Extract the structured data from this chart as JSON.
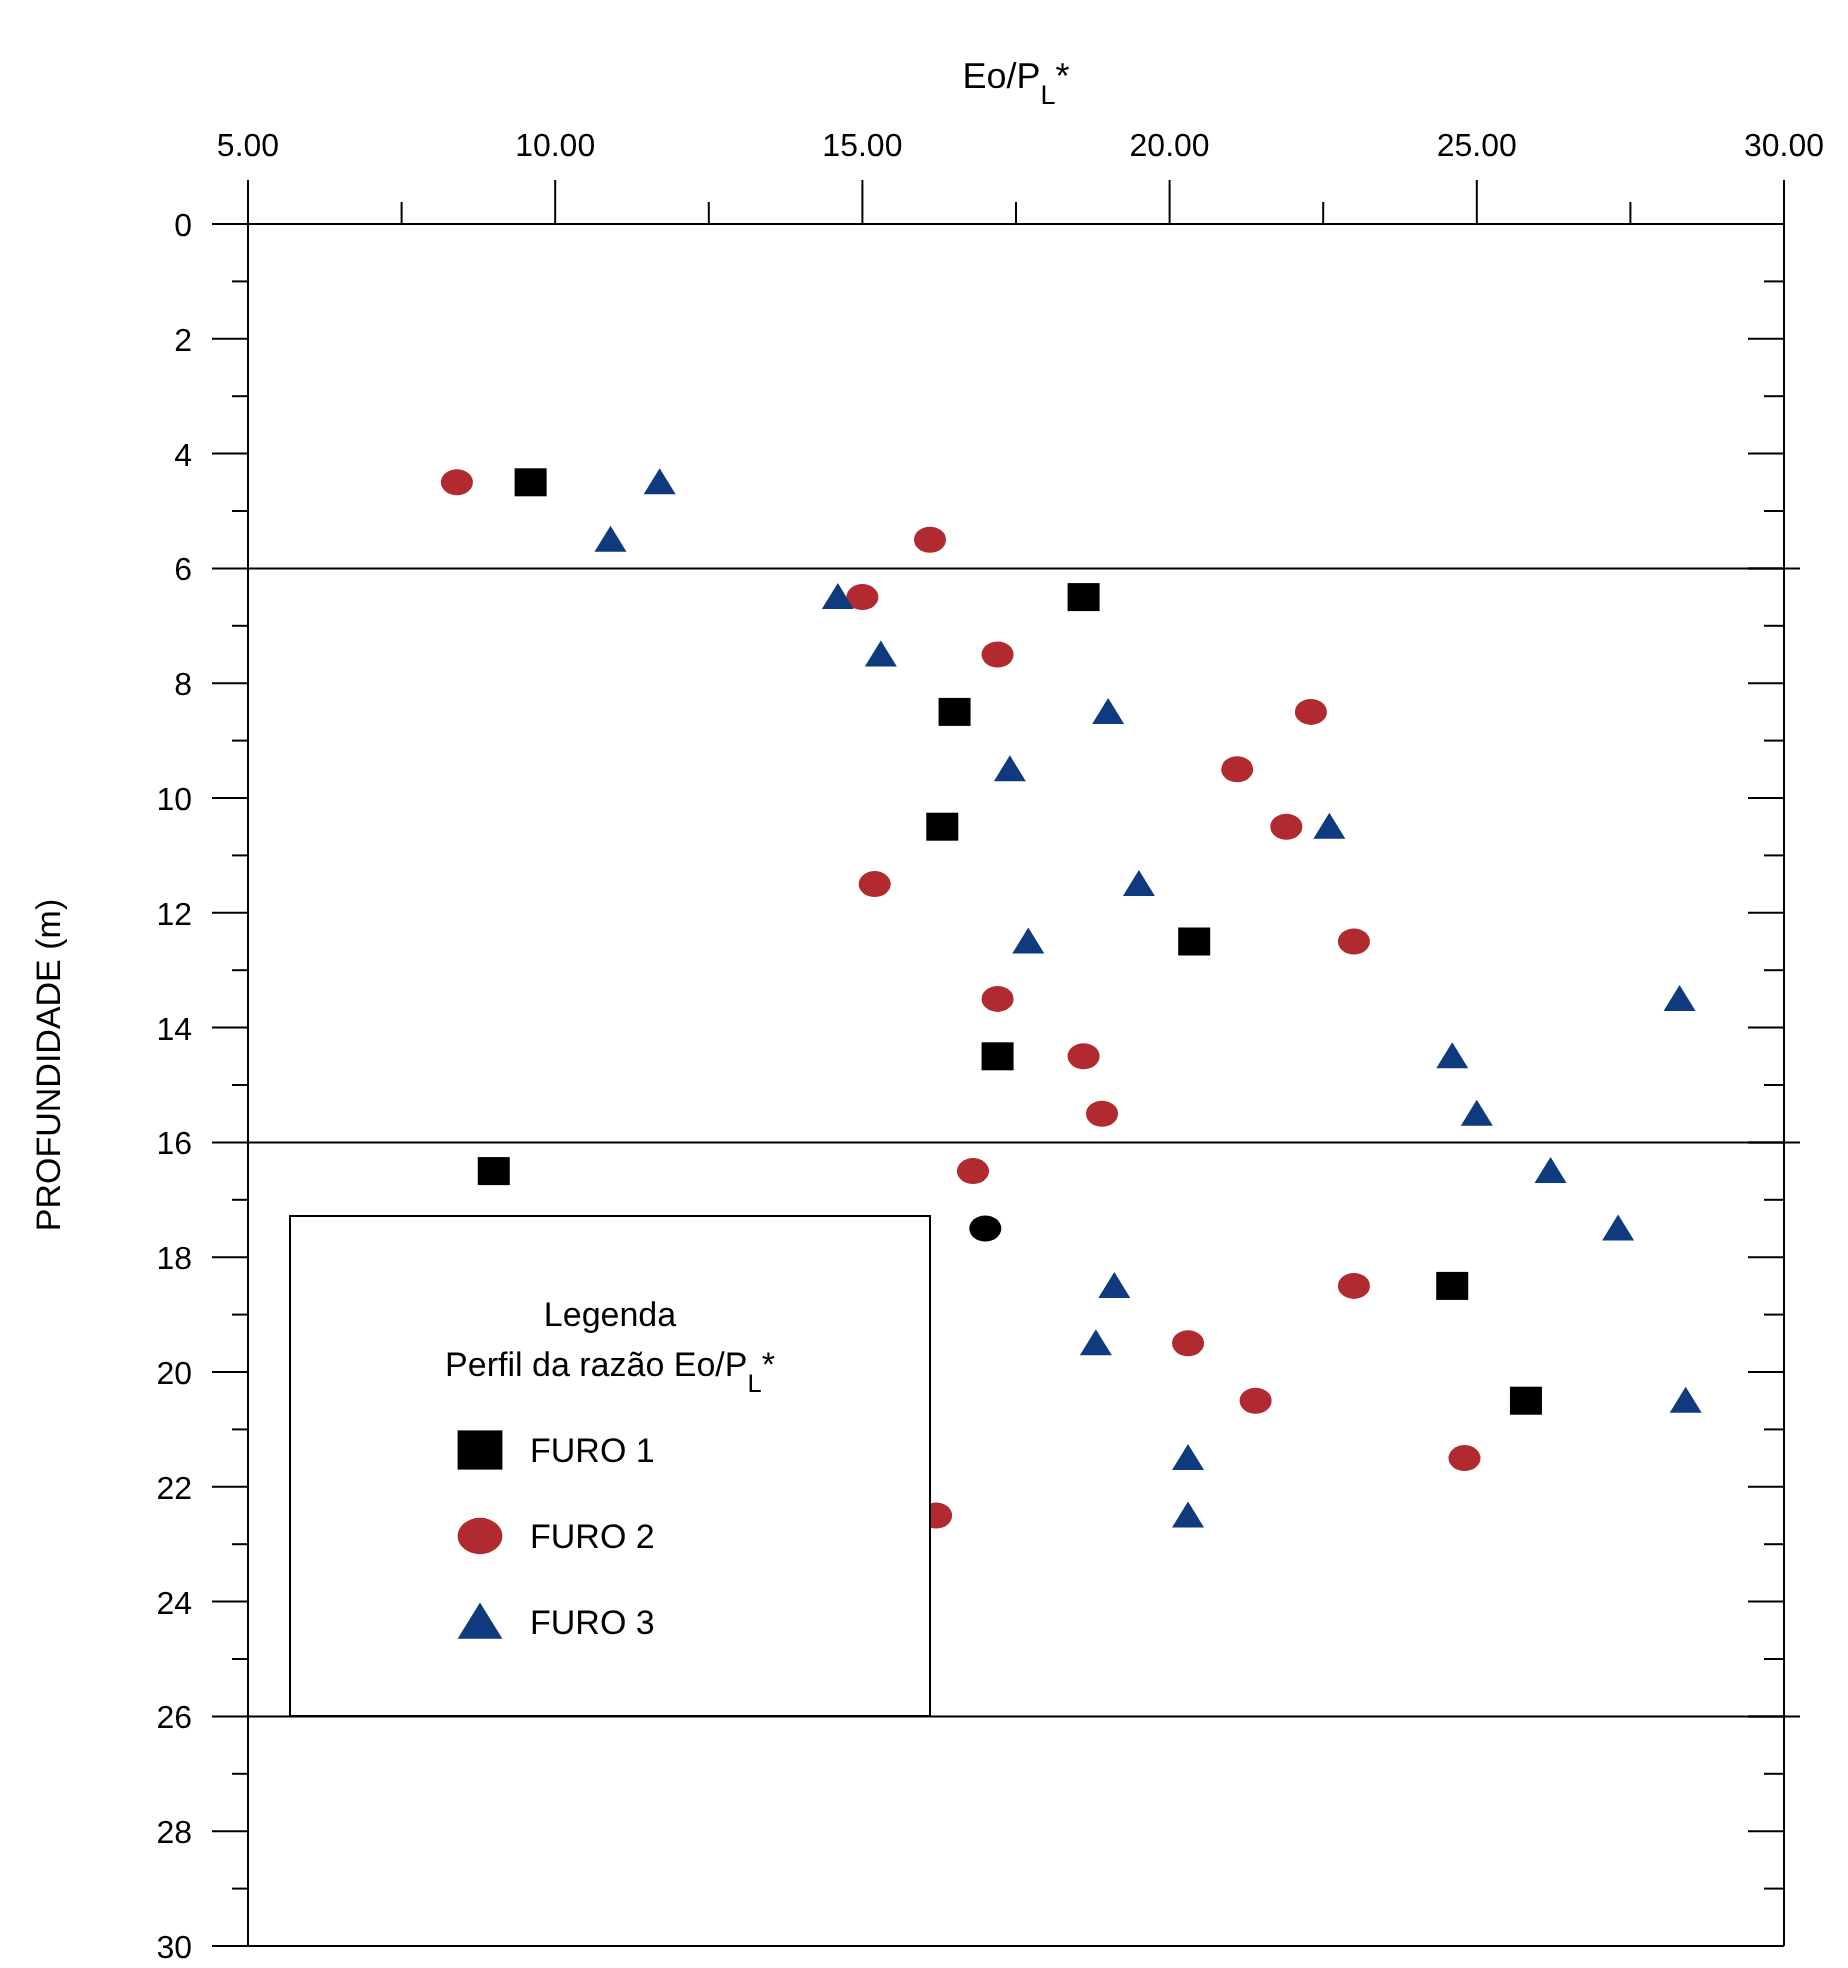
{
  "chart_data": {
    "type": "scatter",
    "xlabel": "Eo/P$_{L}$*",
    "ylabel": "PROFUNDIDADE (m)",
    "legend_title": "Legenda\nPerfil da razão Eo/P$_{L}$*",
    "legend": "bottom left",
    "grid": false,
    "xlim": [
      5,
      30
    ],
    "xticks": [
      {
        "value": 5,
        "label": "5.00"
      },
      {
        "value": 7.5,
        "label": null
      },
      {
        "value": 10,
        "label": "10.00"
      },
      {
        "value": 12.5,
        "label": null
      },
      {
        "value": 15,
        "label": "15.00"
      },
      {
        "value": 17.5,
        "label": null
      },
      {
        "value": 20,
        "label": "20.00"
      },
      {
        "value": 22.5,
        "label": null
      },
      {
        "value": 25,
        "label": "25.00"
      },
      {
        "value": 27.5,
        "label": null
      },
      {
        "value": 30,
        "label": "30.00"
      }
    ],
    "ylim": [
      30,
      0
    ],
    "yticks": [
      0,
      {
        "value": 1,
        "label": null
      },
      2,
      {
        "value": 3,
        "label": null
      },
      4,
      {
        "value": 5,
        "label": null
      },
      6,
      {
        "value": 7,
        "label": null
      },
      8,
      {
        "value": 9,
        "label": null
      },
      10,
      {
        "value": 11,
        "label": null
      },
      12,
      {
        "value": 13,
        "label": null
      },
      14,
      {
        "value": 15,
        "label": null
      },
      16,
      {
        "value": 17,
        "label": null
      },
      18,
      {
        "value": 19,
        "label": null
      },
      20,
      {
        "value": 21,
        "label": null
      },
      22,
      {
        "value": 23,
        "label": null
      },
      24,
      {
        "value": 25,
        "label": null
      },
      26,
      {
        "value": 27,
        "label": null
      },
      28,
      {
        "value": 29,
        "label": null
      },
      30
    ],
    "ref_lines": [
      {
        "axis": "y",
        "value": 6
      },
      {
        "axis": "y",
        "value": 16
      },
      {
        "axis": "y",
        "value": 26
      }
    ],
    "series": [
      {
        "name": "FURO 1",
        "color": "#000000",
        "marker": "square",
        "x": [
          9.6,
          18.6,
          16.5,
          16.3,
          20.4,
          17.2,
          9.0,
          24.6,
          25.8
        ],
        "values": [
          4.5,
          6.5,
          8.5,
          10.5,
          12.5,
          14.5,
          16.5,
          18.5,
          20.5
        ]
      },
      {
        "name": "FURO 2",
        "color": "#b02a30",
        "colors": [
          "#b02a30",
          "#b02a30",
          "#b02a30",
          "#b02a30",
          "#b02a30",
          "#b02a30",
          "#b02a30",
          "#b02a30",
          "#b02a30",
          "#b02a30",
          "#b02a30",
          "#b02a30",
          "#b02a30",
          "#000000",
          "#b02a30",
          "#b02a30",
          "#b02a30",
          "#b02a30",
          "#b02a30"
        ],
        "marker": "circle",
        "x": [
          8.4,
          16.1,
          15.0,
          17.2,
          22.3,
          21.1,
          21.9,
          15.2,
          23.0,
          17.2,
          18.6,
          18.9,
          16.8,
          17.0,
          23.0,
          20.3,
          21.4,
          24.8,
          16.2
        ],
        "values": [
          4.5,
          5.5,
          6.5,
          7.5,
          8.5,
          9.5,
          10.5,
          11.5,
          12.5,
          13.5,
          14.5,
          15.5,
          16.5,
          17.5,
          18.5,
          19.5,
          20.5,
          21.5,
          22.5
        ]
      },
      {
        "name": "FURO 3",
        "color": "#0f3a7e",
        "marker": "triangle",
        "x": [
          11.7,
          10.9,
          14.6,
          15.3,
          19.0,
          17.4,
          22.6,
          19.5,
          17.7,
          28.3,
          24.6,
          25.0,
          26.2,
          27.3,
          19.1,
          18.8,
          28.4,
          20.3,
          20.3
        ],
        "values": [
          4.5,
          5.5,
          6.5,
          7.5,
          8.5,
          9.5,
          10.5,
          11.5,
          12.5,
          13.5,
          14.5,
          15.5,
          16.5,
          17.5,
          18.5,
          19.5,
          20.5,
          21.5,
          22.5
        ]
      }
    ]
  }
}
